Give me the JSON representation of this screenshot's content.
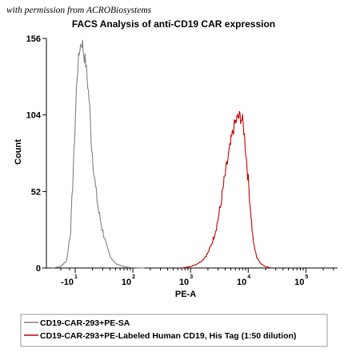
{
  "credit": "with permission from ACROBiosystems",
  "chart_data": {
    "type": "line",
    "title": "FACS Analysis of anti-CD19 CAR expression",
    "xlabel": "PE-A",
    "ylabel": "Count",
    "x_scale": "log",
    "ylim": [
      0,
      156
    ],
    "y_ticks": [
      {
        "value": 0,
        "label": "0"
      },
      {
        "value": 52,
        "label": "52"
      },
      {
        "value": 104,
        "label": "104"
      },
      {
        "value": 156,
        "label": "156"
      }
    ],
    "x_ticks": [
      {
        "value": 1,
        "base": "-10",
        "exp": "1"
      },
      {
        "value": 2,
        "base": "10",
        "exp": "2"
      },
      {
        "value": 3,
        "base": "10",
        "exp": "3"
      },
      {
        "value": 4,
        "base": "10",
        "exp": "4"
      },
      {
        "value": 5,
        "base": "10",
        "exp": "5"
      }
    ],
    "legend_placement": "bottom",
    "series": [
      {
        "name": "CD19-CAR-293+PE-SA",
        "color": "#808080",
        "x": [
          0.6,
          0.75,
          0.85,
          0.92,
          0.98,
          1.03,
          1.08,
          1.12,
          1.15,
          1.18,
          1.21,
          1.25,
          1.28,
          1.31,
          1.35,
          1.4,
          1.46,
          1.52,
          1.57,
          1.62,
          1.7,
          1.8,
          1.9,
          2.0,
          2.2
        ],
        "y": [
          0,
          1,
          5,
          25,
          80,
          130,
          150,
          154,
          145,
          140,
          128,
          110,
          85,
          72,
          55,
          40,
          28,
          18,
          12,
          7,
          3,
          1.5,
          0.5,
          0.2,
          0
        ]
      },
      {
        "name": "CD19-CAR-293+PE-Labeled Human CD19, His Tag (1:50 dilution)",
        "color": "#c00000",
        "x": [
          2.85,
          3.0,
          3.1,
          3.2,
          3.3,
          3.38,
          3.45,
          3.52,
          3.58,
          3.64,
          3.7,
          3.74,
          3.78,
          3.82,
          3.86,
          3.9,
          3.93,
          3.96,
          4.0,
          4.04,
          4.07,
          4.1,
          4.15,
          4.22,
          4.3,
          4.4
        ],
        "y": [
          0,
          1,
          2.5,
          5,
          10,
          18,
          28,
          42,
          58,
          72,
          85,
          94,
          99,
          102,
          103,
          100,
          92,
          78,
          60,
          40,
          25,
          15,
          7,
          3,
          1,
          0
        ]
      }
    ]
  }
}
